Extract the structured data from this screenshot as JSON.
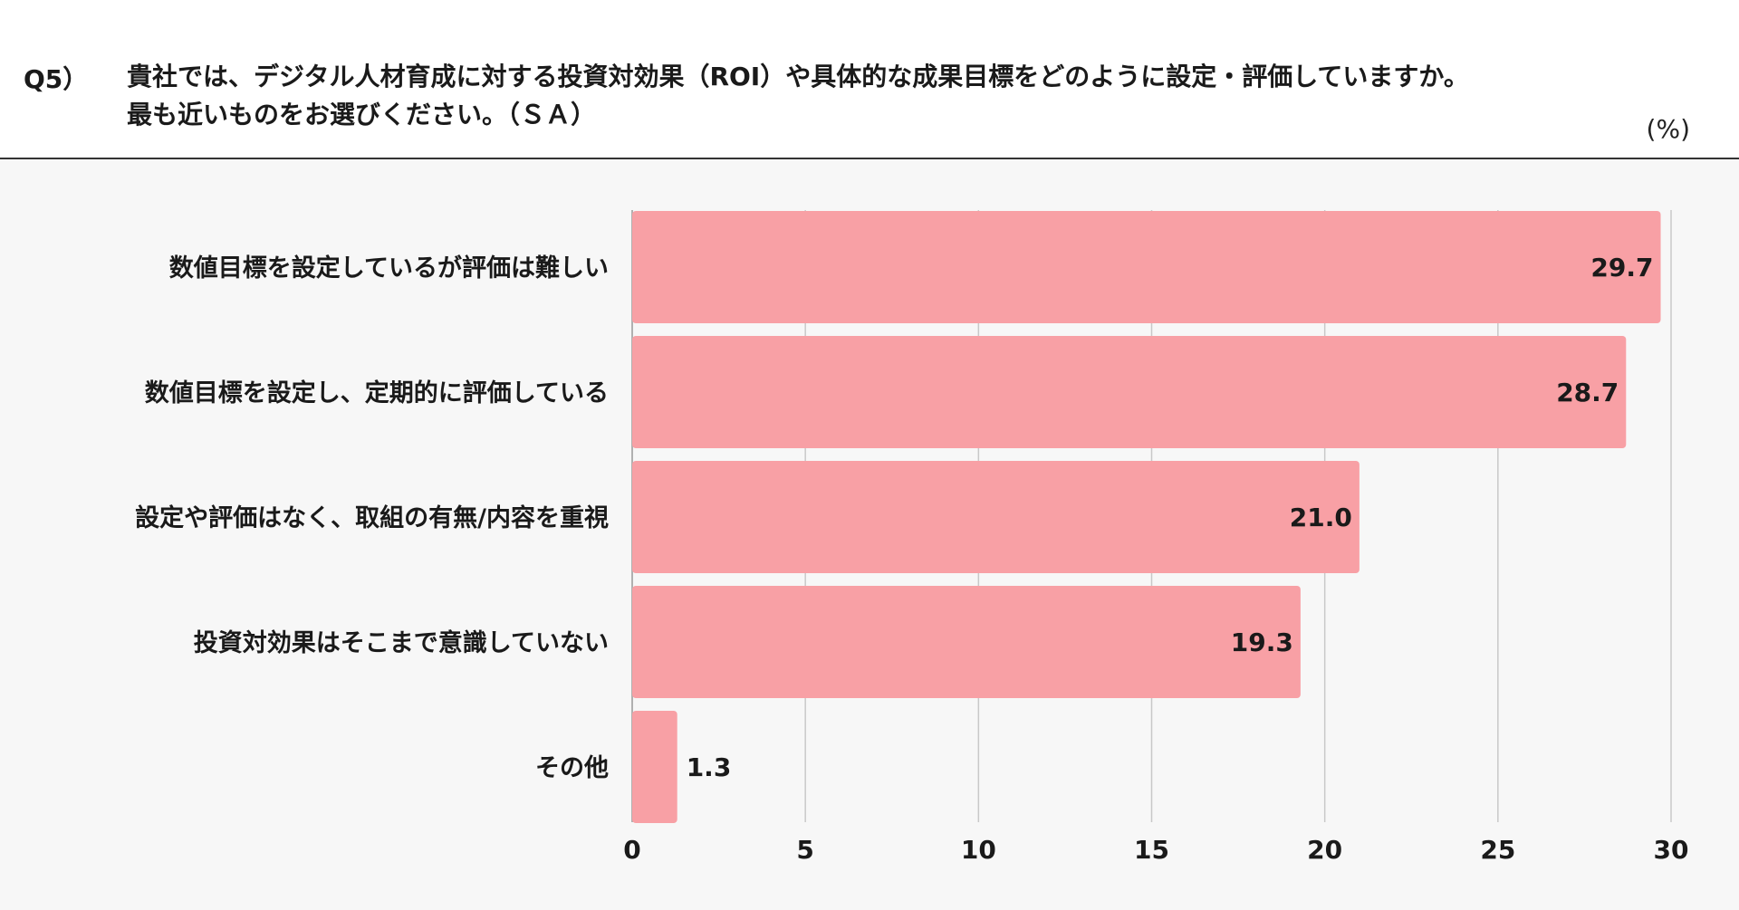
{
  "question": {
    "number": "Q5）",
    "lines": [
      "貴社では、デジタル人材育成に対する投資対効果（ROI）や具体的な成果目標をどのように設定・評価していますか。",
      "最も近いものをお選びください。（ＳＡ）"
    ]
  },
  "unit_label": "(%)",
  "colors": {
    "bar": "#f8a0a5",
    "grid": "#c8c8c8",
    "axis": "#b0b0b0",
    "text": "#1a1a1a",
    "background": "#f7f7f7"
  },
  "chart_data": {
    "type": "bar",
    "orientation": "horizontal",
    "categories": [
      "数値目標を設定しているが評価は難しい",
      "数値目標を設定し、定期的に評価している",
      "設定や評価はなく、取組の有無/内容を重視",
      "投資対効果はそこまで意識していない",
      "その他"
    ],
    "values": [
      29.7,
      28.7,
      21.0,
      19.3,
      1.3
    ],
    "value_labels": [
      "29.7",
      "28.7",
      "21.0",
      "19.3",
      "1.3"
    ],
    "xlim": [
      0,
      30
    ],
    "ticks": [
      0,
      5,
      10,
      15,
      20,
      25,
      30
    ],
    "tick_labels": [
      "0",
      "5",
      "10",
      "15",
      "20",
      "25",
      "30"
    ],
    "grid": true,
    "legend": false
  }
}
